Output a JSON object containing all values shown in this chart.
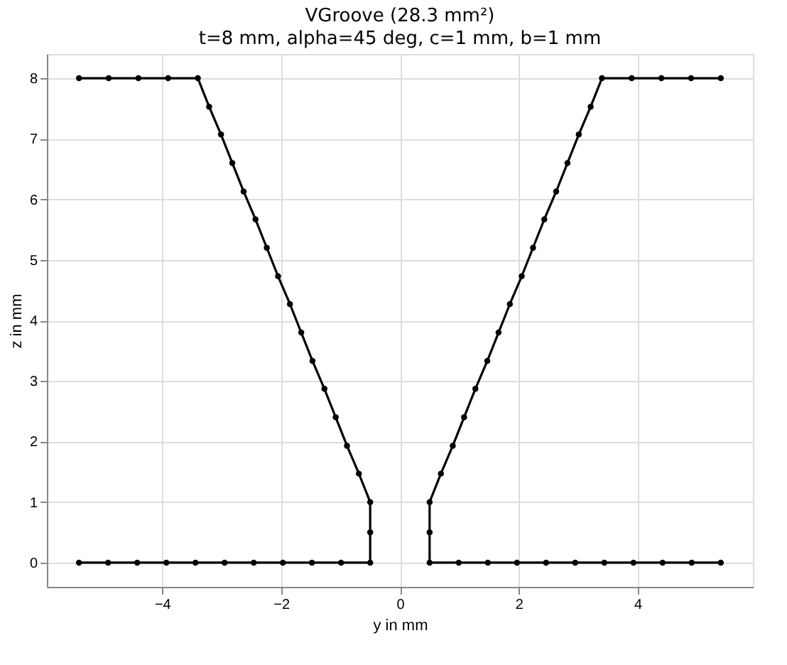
{
  "chart_data": {
    "type": "line",
    "title": "VGroove (28.3 mm²)",
    "subtitle": "t=8 mm, alpha=45 deg, c=1 mm, b=1 mm",
    "xlabel": "y in mm",
    "ylabel": "z in mm",
    "series": [
      {
        "color": "#000000",
        "x": [
          -5.4,
          -4.9,
          -4.4,
          -3.9,
          -3.4,
          -3.21,
          -3.01,
          -2.82,
          -2.63,
          -2.43,
          -2.24,
          -2.05,
          -1.85,
          -1.66,
          -1.47,
          -1.27,
          -1.08,
          -0.89,
          -0.69,
          -0.5,
          -0.5,
          -0.5,
          -0.99,
          -1.48,
          -1.97,
          -2.46,
          -2.95,
          -3.44,
          -3.93,
          -4.42,
          -4.91,
          -5.4
        ],
        "values": [
          8,
          8,
          8,
          8,
          8,
          7.53,
          7.07,
          6.6,
          6.13,
          5.67,
          5.2,
          4.73,
          4.27,
          3.8,
          3.33,
          2.87,
          2.4,
          1.93,
          1.47,
          1,
          0.5,
          0,
          0,
          0,
          0,
          0,
          0,
          0,
          0,
          0,
          0,
          0
        ]
      },
      {
        "color": "#000000",
        "x": [
          5.4,
          4.9,
          4.4,
          3.9,
          3.4,
          3.21,
          3.01,
          2.82,
          2.63,
          2.43,
          2.24,
          2.05,
          1.85,
          1.66,
          1.47,
          1.27,
          1.08,
          0.89,
          0.69,
          0.5,
          0.5,
          0.5,
          0.99,
          1.48,
          1.97,
          2.46,
          2.95,
          3.44,
          3.93,
          4.42,
          4.91,
          5.4
        ],
        "values": [
          8,
          8,
          8,
          8,
          8,
          7.53,
          7.07,
          6.6,
          6.13,
          5.67,
          5.2,
          4.73,
          4.27,
          3.8,
          3.33,
          2.87,
          2.4,
          1.93,
          1.47,
          1,
          0.5,
          0,
          0,
          0,
          0,
          0,
          0,
          0,
          0,
          0,
          0,
          0
        ]
      }
    ],
    "xlim": [
      -5.94,
      5.94
    ],
    "ylim": [
      -0.4,
      8.4
    ],
    "xticks": [
      -4,
      -2,
      0,
      2,
      4
    ],
    "yticks": [
      0,
      1,
      2,
      3,
      4,
      5,
      6,
      7,
      8
    ],
    "grid": true,
    "marker": "circle",
    "line_style": "solid"
  }
}
